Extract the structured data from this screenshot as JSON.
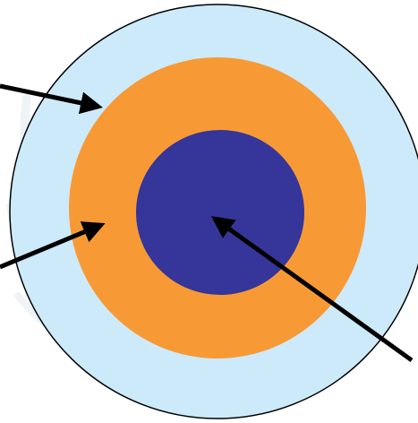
{
  "diagram": {
    "type": "concentric-circles",
    "rings": [
      {
        "name": "outer-ring",
        "fill": "#cdeafb",
        "stroke": "#000000"
      },
      {
        "name": "middle-ring",
        "fill": "#f79a35"
      },
      {
        "name": "inner-core",
        "fill": "#35359a"
      }
    ],
    "arrows": [
      {
        "name": "arrow-to-outer-ring",
        "color": "#000000",
        "points_to": "outer-ring"
      },
      {
        "name": "arrow-to-middle-ring",
        "color": "#000000",
        "points_to": "middle-ring"
      },
      {
        "name": "arrow-to-inner-core",
        "color": "#000000",
        "points_to": "inner-core"
      }
    ],
    "background": {
      "color": "#ffffff",
      "watermark_color": "#e6ecf2"
    }
  }
}
